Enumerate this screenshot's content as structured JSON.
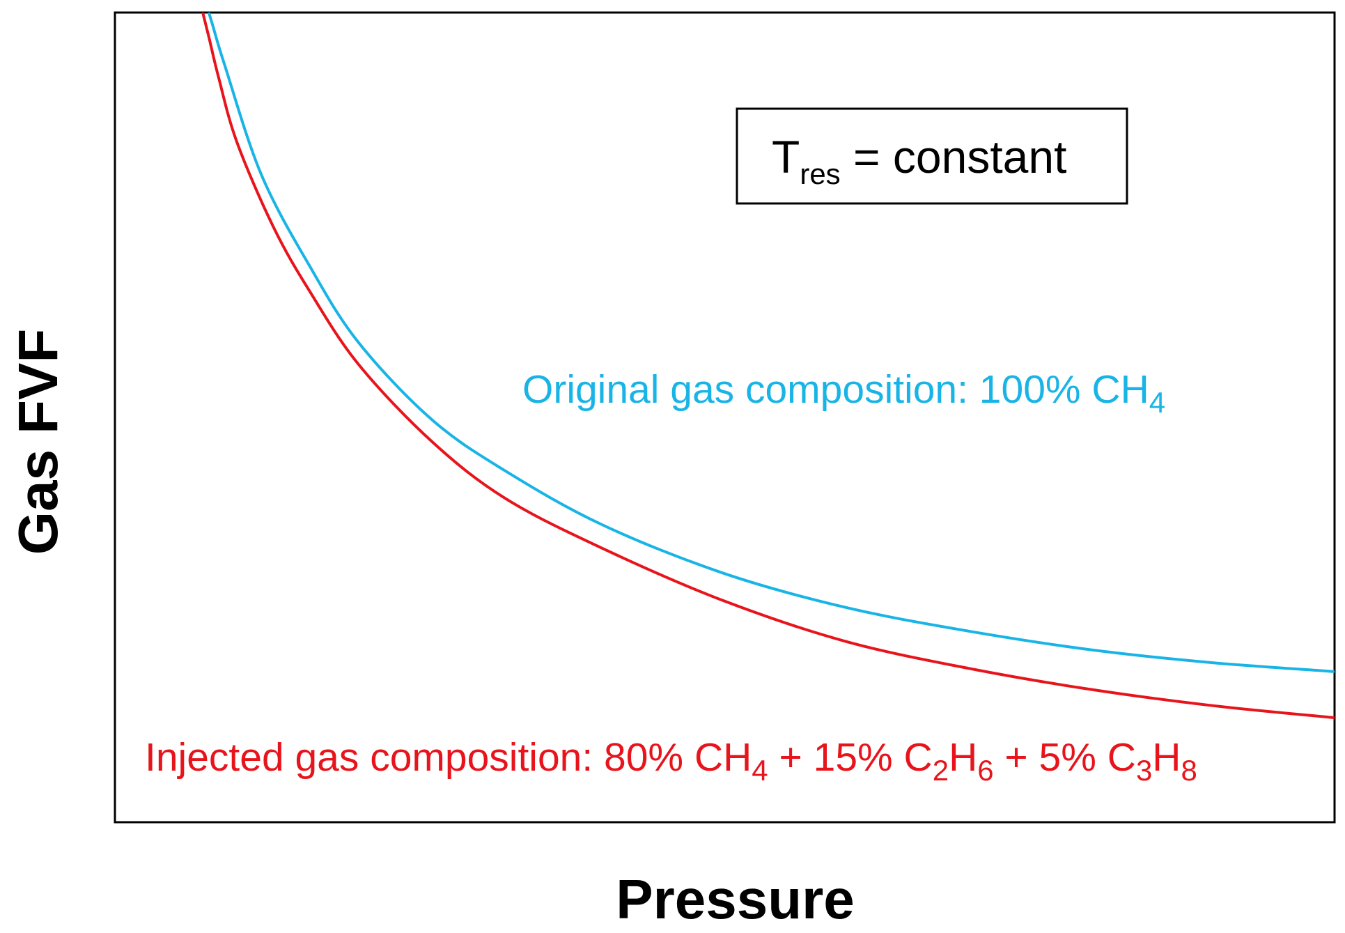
{
  "chart_data": {
    "type": "line",
    "xlabel": "Pressure",
    "ylabel": "Gas FVF",
    "grid": false,
    "x_ticks_shown": false,
    "y_ticks_shown": false,
    "annotation_box": {
      "base": "T",
      "subscript": "res",
      "rest": " = constant"
    },
    "series": [
      {
        "name_parts": [
          {
            "t": "Original gas composition: 100% CH",
            "sub": false
          },
          {
            "t": "4",
            "sub": true
          }
        ],
        "color": "#19b4e6",
        "x": [
          0.077,
          0.08,
          0.09,
          0.12,
          0.16,
          0.2,
          0.26,
          0.32,
          0.4,
          0.5,
          0.6,
          0.7,
          0.8,
          0.9,
          1.0
        ],
        "y": [
          1.0,
          0.985,
          0.935,
          0.8,
          0.686,
          0.592,
          0.497,
          0.434,
          0.367,
          0.307,
          0.265,
          0.236,
          0.213,
          0.197,
          0.186
        ]
      },
      {
        "name_parts": [
          {
            "t": "Injected gas composition: 80% CH",
            "sub": false
          },
          {
            "t": "4",
            "sub": true
          },
          {
            "t": " + 15% C",
            "sub": false
          },
          {
            "t": "2",
            "sub": true
          },
          {
            "t": "H",
            "sub": false
          },
          {
            "t": "6",
            "sub": true
          },
          {
            "t": " + 5% C",
            "sub": false
          },
          {
            "t": "3",
            "sub": true
          },
          {
            "t": "H",
            "sub": false
          },
          {
            "t": "8",
            "sub": true
          }
        ],
        "color": "#e8141c",
        "x": [
          0.072,
          0.077,
          0.085,
          0.1,
          0.13,
          0.16,
          0.2,
          0.26,
          0.32,
          0.4,
          0.5,
          0.6,
          0.7,
          0.8,
          0.9,
          1.0
        ],
        "y": [
          1.0,
          0.97,
          0.92,
          0.84,
          0.735,
          0.655,
          0.565,
          0.47,
          0.4,
          0.338,
          0.273,
          0.223,
          0.19,
          0.164,
          0.144,
          0.129
        ]
      }
    ]
  }
}
